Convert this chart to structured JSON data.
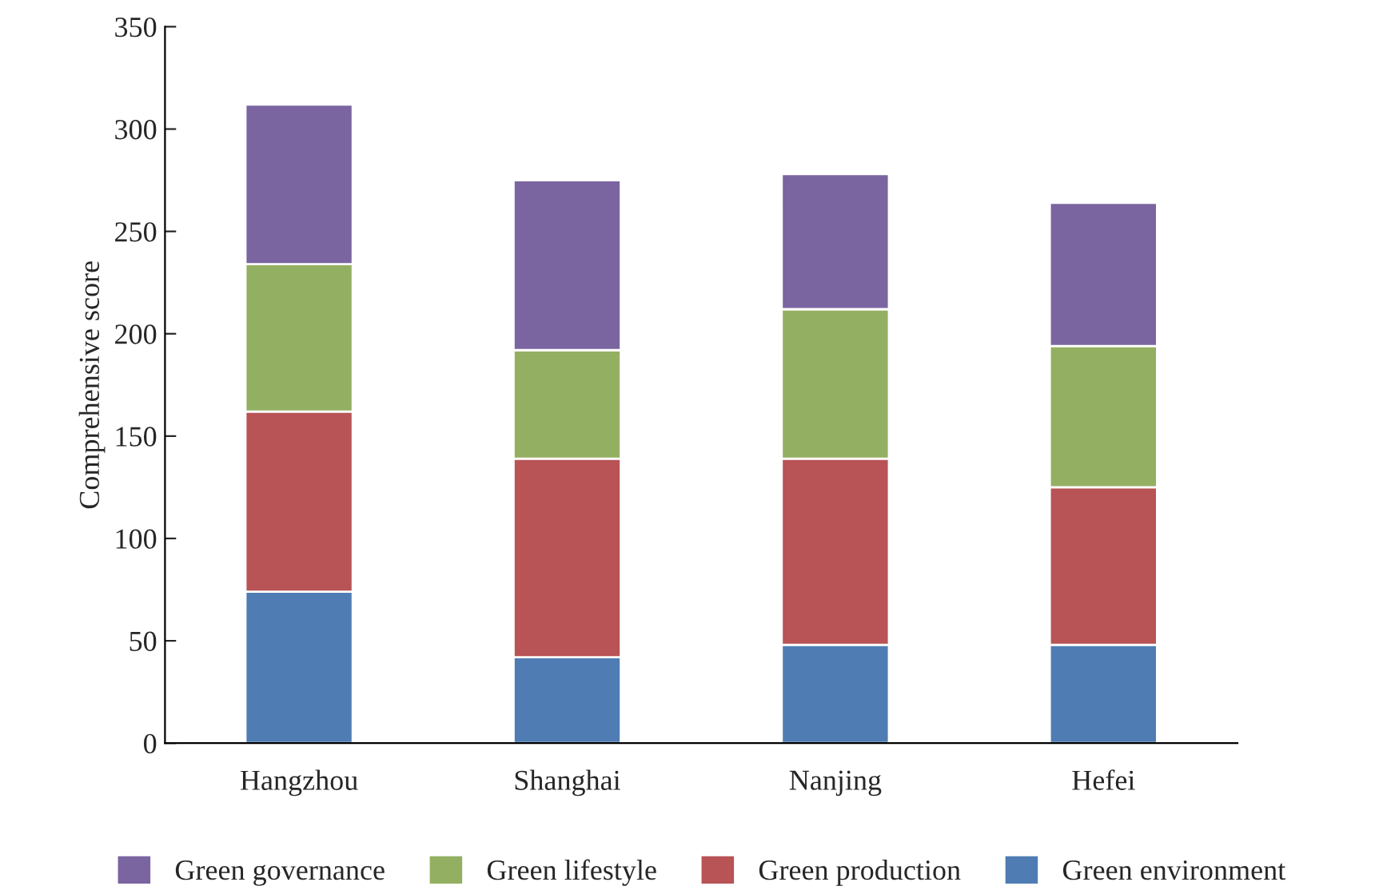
{
  "chart_data": {
    "type": "bar",
    "stacked": true,
    "ylabel": "Comprehensive score",
    "categories": [
      "Hangzhou",
      "Shanghai",
      "Nanjing",
      "Hefei"
    ],
    "series": [
      {
        "name": "Green environment",
        "color": "#4f7db3",
        "values": [
          74,
          42,
          48,
          48
        ]
      },
      {
        "name": "Green production",
        "color": "#b85356",
        "values": [
          88,
          97,
          91,
          77
        ]
      },
      {
        "name": "Green lifestyle",
        "color": "#93b062",
        "values": [
          72,
          53,
          73,
          69
        ]
      },
      {
        "name": "Green governance",
        "color": "#7a65a0",
        "values": [
          78,
          83,
          66,
          70
        ]
      }
    ],
    "ylim": [
      0,
      350
    ],
    "yticks": [
      0,
      50,
      100,
      150,
      200,
      250,
      300,
      350
    ],
    "grid": false,
    "legend": "bottom"
  }
}
